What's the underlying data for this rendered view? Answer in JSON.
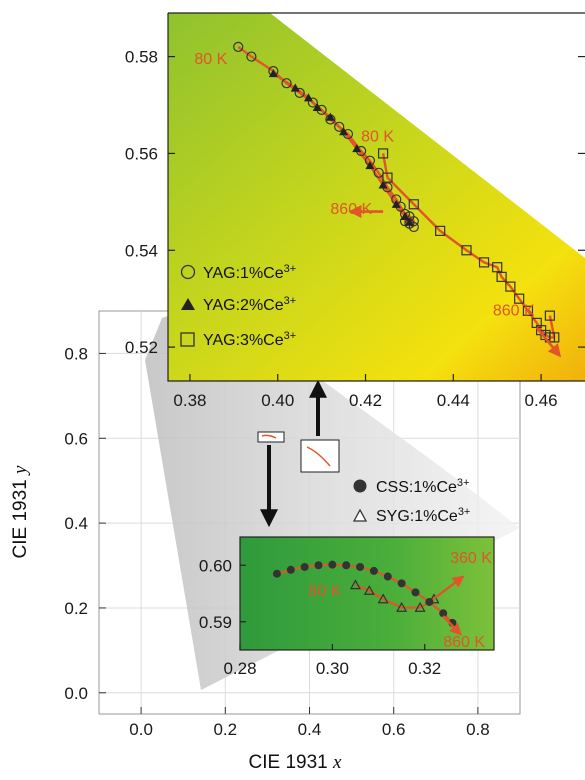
{
  "colors": {
    "accent": "#e0552a",
    "marker": "#333333",
    "grid": "#dcdcdc"
  },
  "chart_data": [
    {
      "id": "main",
      "type": "scatter",
      "xlabel": "CIE 1931",
      "xlabel_var": "x",
      "ylabel": "CIE 1931",
      "ylabel_var": "y",
      "xlim": [
        -0.1,
        0.9
      ],
      "ylim": [
        -0.05,
        0.9
      ],
      "xticks": [
        "0.0",
        "0.2",
        "0.4",
        "0.6",
        "0.8"
      ],
      "xtick_values": [
        0.0,
        0.2,
        0.4,
        0.6,
        0.8
      ],
      "yticks": [
        "0.0",
        "0.2",
        "0.4",
        "0.6",
        "0.8"
      ],
      "ytick_values": [
        0.0,
        0.2,
        0.4,
        0.6,
        0.8
      ],
      "grid": true,
      "legend": {
        "placement": "right",
        "entries": [
          {
            "marker": "filled-circle",
            "label": "CSS:1%Ce",
            "sup": "3+"
          },
          {
            "marker": "open-triangle",
            "label": "SYG:1%Ce",
            "sup": "3+"
          }
        ]
      },
      "zoom_boxes": [
        {
          "name": "CSS/SYG region",
          "x": [
            0.28,
            0.33
          ],
          "y": [
            0.585,
            0.605
          ]
        },
        {
          "name": "YAG region",
          "x": [
            0.38,
            0.47
          ],
          "y": [
            0.515,
            0.59
          ]
        }
      ]
    },
    {
      "id": "inset_yag",
      "type": "scatter",
      "xlim": [
        0.375,
        0.47
      ],
      "ylim": [
        0.513,
        0.589
      ],
      "xticks": [
        "0.38",
        "0.40",
        "0.42",
        "0.44",
        "0.46"
      ],
      "xtick_values": [
        0.38,
        0.4,
        0.42,
        0.44,
        0.46
      ],
      "yticks": [
        "0.52",
        "0.54",
        "0.56",
        "0.58"
      ],
      "ytick_values": [
        0.52,
        0.54,
        0.56,
        0.58
      ],
      "legend": {
        "placement": "bottom-left",
        "entries": [
          {
            "marker": "open-circle",
            "label": "YAG:1%Ce",
            "sup": "3+"
          },
          {
            "marker": "filled-triangle",
            "label": "YAG:2%Ce",
            "sup": "3+"
          },
          {
            "marker": "open-square",
            "label": "YAG:3%Ce",
            "sup": "3+"
          }
        ]
      },
      "series": [
        {
          "name": "YAG:1%Ce3+",
          "marker": "open-circle",
          "x": [
            0.391,
            0.394,
            0.399,
            0.402,
            0.405,
            0.408,
            0.41,
            0.412,
            0.414,
            0.416,
            0.419,
            0.421,
            0.423,
            0.425,
            0.427,
            0.428,
            0.429,
            0.43,
            0.431,
            0.43,
            0.429,
            0.431
          ],
          "y": [
            0.582,
            0.58,
            0.577,
            0.5745,
            0.5725,
            0.5705,
            0.569,
            0.567,
            0.5655,
            0.564,
            0.5605,
            0.5585,
            0.556,
            0.553,
            0.5505,
            0.549,
            0.5475,
            0.547,
            0.546,
            0.5455,
            0.546,
            0.5448
          ]
        },
        {
          "name": "YAG:2%Ce3+",
          "marker": "filled-triangle",
          "x": [
            0.399,
            0.404,
            0.407,
            0.409,
            0.412,
            0.415,
            0.418,
            0.421,
            0.424,
            0.427,
            0.429,
            0.43
          ],
          "y": [
            0.5765,
            0.5735,
            0.5715,
            0.5695,
            0.5675,
            0.5645,
            0.561,
            0.5575,
            0.5535,
            0.5495,
            0.547,
            0.5458
          ]
        },
        {
          "name": "YAG:3%Ce3+",
          "marker": "open-square",
          "x": [
            0.424,
            0.425,
            0.431,
            0.437,
            0.443,
            0.447,
            0.45,
            0.451,
            0.453,
            0.455,
            0.457,
            0.459,
            0.46,
            0.461,
            0.462,
            0.463,
            0.462
          ],
          "y": [
            0.56,
            0.555,
            0.5495,
            0.544,
            0.54,
            0.5375,
            0.5365,
            0.5345,
            0.5325,
            0.53,
            0.5275,
            0.525,
            0.5235,
            0.5225,
            0.522,
            0.522,
            0.5265
          ]
        }
      ],
      "annotations": [
        {
          "text": "80 K",
          "x": 0.381,
          "y": 0.5785
        },
        {
          "text": "80 K",
          "x": 0.419,
          "y": 0.5625
        },
        {
          "text": "860 K",
          "x": 0.412,
          "y": 0.5475
        },
        {
          "text": "860 K",
          "x": 0.449,
          "y": 0.5265
        }
      ],
      "arrows": [
        {
          "from": [
            0.424,
            0.548
          ],
          "to": [
            0.417,
            0.548
          ]
        },
        {
          "from": [
            0.459,
            0.524
          ],
          "to": [
            0.464,
            0.5185
          ]
        }
      ]
    },
    {
      "id": "inset_css_syg",
      "type": "scatter",
      "xlim": [
        0.28,
        0.335
      ],
      "ylim": [
        0.585,
        0.605
      ],
      "xticks": [
        "0.28",
        "0.30",
        "0.32"
      ],
      "xtick_values": [
        0.28,
        0.3,
        0.32
      ],
      "yticks": [
        "0.59",
        "0.60"
      ],
      "ytick_values": [
        0.59,
        0.6
      ],
      "series": [
        {
          "name": "CSS:1%Ce3+",
          "marker": "filled-circle",
          "x": [
            0.288,
            0.291,
            0.294,
            0.297,
            0.3,
            0.303,
            0.306,
            0.309,
            0.312,
            0.315,
            0.318,
            0.321,
            0.324,
            0.326
          ],
          "y": [
            0.5985,
            0.5992,
            0.5997,
            0.6,
            0.6001,
            0.6,
            0.5997,
            0.599,
            0.598,
            0.5968,
            0.5952,
            0.5935,
            0.5915,
            0.5898
          ]
        },
        {
          "name": "SYG:1%Ce3+",
          "marker": "open-triangle",
          "x": [
            0.305,
            0.308,
            0.311,
            0.315,
            0.319,
            0.322
          ],
          "y": [
            0.5965,
            0.5955,
            0.594,
            0.5925,
            0.5925,
            0.594
          ]
        }
      ],
      "annotations": [
        {
          "text": "80 K",
          "x": 0.2948,
          "y": 0.5946
        },
        {
          "text": "360 K",
          "x": 0.3255,
          "y": 0.6004
        },
        {
          "text": "860 K",
          "x": 0.324,
          "y": 0.5855
        }
      ],
      "arrows": [
        {
          "from": [
            0.322,
            0.5941
          ],
          "to": [
            0.328,
            0.5978
          ]
        },
        {
          "from": [
            0.324,
            0.591
          ],
          "to": [
            0.3275,
            0.588
          ]
        }
      ]
    }
  ]
}
